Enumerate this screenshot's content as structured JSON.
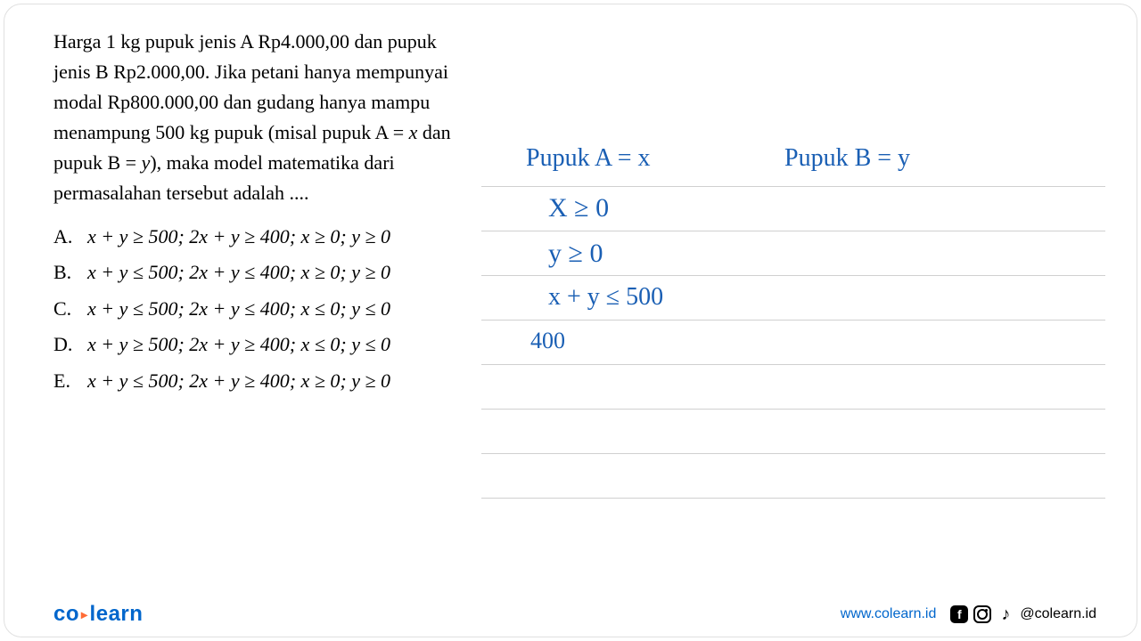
{
  "question": {
    "text": "Harga 1 kg pupuk jenis A Rp4.000,00 dan pupuk jenis B Rp2.000,00. Jika petani hanya mempunyai modal Rp800.000,00 dan gudang hanya mampu menampung 500 kg pupuk (misal pupuk A = x dan pupuk B = y), maka model matematika dari permasalahan tersebut adalah ....",
    "options": [
      {
        "letter": "A.",
        "math": "x + y ≥ 500; 2x + y ≥ 400; x ≥ 0; y ≥ 0"
      },
      {
        "letter": "B.",
        "math": "x + y ≤ 500; 2x + y ≤ 400; x ≥ 0; y ≥ 0"
      },
      {
        "letter": "C.",
        "math": "x + y ≤ 500; 2x + y ≤ 400; x ≤ 0; y ≤ 0"
      },
      {
        "letter": "D.",
        "math": "x + y ≥ 500; 2x + y ≥ 400; x ≤ 0; y ≤ 0"
      },
      {
        "letter": "E.",
        "math": "x + y ≤ 500; 2x + y ≥ 400; x ≥ 0; y ≥ 0"
      }
    ]
  },
  "handwriting": {
    "line1a": "Pupuk  A  =  x",
    "line1b": "Pupuk  B  =  y",
    "line2": "X  ≥  0",
    "line3": "y  ≥  0",
    "line4": "x  +  y   ≤   500",
    "line5": "400"
  },
  "footer": {
    "logo_co": "co",
    "logo_learn": "learn",
    "website": "www.colearn.id",
    "handle": "@colearn.id"
  },
  "colors": {
    "text": "#000000",
    "handwriting": "#1a5fb4",
    "logo_blue": "#0066cc",
    "logo_orange": "#ff6b35",
    "line": "#d0d0d0",
    "background": "#ffffff"
  }
}
